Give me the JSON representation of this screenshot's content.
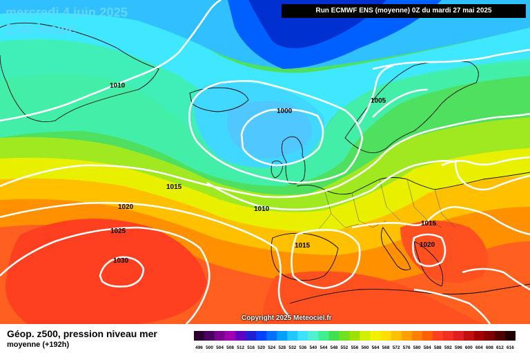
{
  "header": {
    "date": "mercredi 4 juin 2025",
    "time": "2:00 locale",
    "run": "Run ECMWF ENS (moyenne) 0Z du mardi 27 mai 2025"
  },
  "footer": {
    "title": "Géop. z500, pression niveau mer",
    "subtitle": "moyenne  (+192h)",
    "copyright": "Copyright 2025 Meteociel.fr"
  },
  "isobars": [
    {
      "label": "1010",
      "color": "#ffffff"
    },
    {
      "label": "1000",
      "color": "#ffffff"
    },
    {
      "label": "1005",
      "color": "#ffffff"
    },
    {
      "label": "1015",
      "color": "#ffffff"
    },
    {
      "label": "1020",
      "color": "#ffffff"
    },
    {
      "label": "1010",
      "color": "#ffffff"
    },
    {
      "label": "1025",
      "color": "#ffffff"
    },
    {
      "label": "1015",
      "color": "#ffffff"
    },
    {
      "label": "1015",
      "color": "#ffffff"
    },
    {
      "label": "1020",
      "color": "#ffffff"
    },
    {
      "label": "1030",
      "color": "#ffffff"
    }
  ],
  "legend": {
    "values": [
      "496",
      "500",
      "504",
      "508",
      "512",
      "516",
      "520",
      "524",
      "528",
      "532",
      "536",
      "540",
      "544",
      "548",
      "552",
      "556",
      "560",
      "564",
      "568",
      "572",
      "576",
      "580",
      "584",
      "588",
      "592",
      "596",
      "600",
      "604",
      "608",
      "612",
      "616"
    ],
    "colors": [
      "#2b0030",
      "#4a0060",
      "#7a0090",
      "#a000b0",
      "#6000c0",
      "#2020d0",
      "#0040ff",
      "#0070ff",
      "#00a0ff",
      "#20c8ff",
      "#40e0ff",
      "#50f0d0",
      "#40f090",
      "#40e050",
      "#70e020",
      "#a0e000",
      "#d0f000",
      "#f0f000",
      "#ffe000",
      "#ffc000",
      "#ffa000",
      "#ff8000",
      "#ff6000",
      "#ff4020",
      "#f03020",
      "#e02020",
      "#c01010",
      "#a00000",
      "#800000",
      "#500000",
      "#200000"
    ]
  },
  "colors": {
    "title": "#5fd8ff",
    "isobar": "#ffffff"
  }
}
